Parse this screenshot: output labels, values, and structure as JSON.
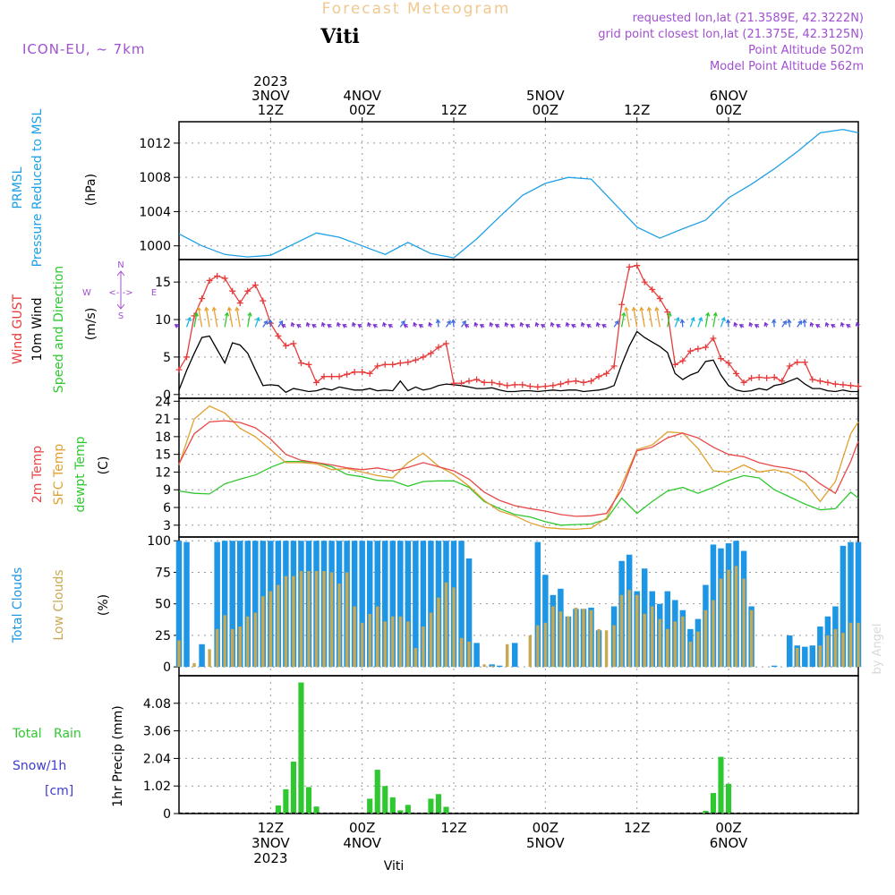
{
  "header": {
    "title": "Forecast Meteogram",
    "location": "Viti",
    "model": "ICON-EU, ~ 7km",
    "requested": "requested lon,lat (21.3589E, 42.3222N)",
    "grid_point": "grid point closest lon,lat (21.375E, 42.3125N)",
    "point_altitude": "Point Altitude 502m",
    "model_altitude": "Model Point Altitude 562m",
    "credit": "by Angel",
    "footer": "Viti"
  },
  "time_axis": {
    "top_ticks": [
      {
        "h": 12,
        "lines": [
          "2023",
          "3NOV",
          "12Z"
        ]
      },
      {
        "h": 24,
        "lines": [
          "4NOV",
          "00Z"
        ]
      },
      {
        "h": 36,
        "lines": [
          "12Z"
        ]
      },
      {
        "h": 48,
        "lines": [
          "5NOV",
          "00Z"
        ]
      },
      {
        "h": 60,
        "lines": [
          "12Z"
        ]
      },
      {
        "h": 72,
        "lines": [
          "6NOV",
          "00Z"
        ]
      }
    ],
    "bottom_ticks": [
      {
        "h": 12,
        "lines": [
          "12Z",
          "3NOV",
          "2023"
        ]
      },
      {
        "h": 24,
        "lines": [
          "00Z",
          "4NOV"
        ]
      },
      {
        "h": 36,
        "lines": [
          "12Z"
        ]
      },
      {
        "h": 48,
        "lines": [
          "00Z",
          "5NOV"
        ]
      },
      {
        "h": 60,
        "lines": [
          "12Z"
        ]
      },
      {
        "h": 72,
        "lines": [
          "00Z",
          "6NOV"
        ]
      }
    ]
  },
  "panels": {
    "pressure": {
      "label1": "PRMSL",
      "label2": "Pressure Reduced to MSL",
      "unit": "(hPa)",
      "ticks": [
        "1000",
        "1004",
        "1008",
        "1012"
      ]
    },
    "wind": {
      "label_gust": "Wind GUST",
      "label_wind": "10m Wind",
      "label_dir": "Speed and Direction",
      "unit": "(m/s)",
      "ticks": [
        "0",
        "5",
        "10",
        "15"
      ],
      "compass": {
        "n": "N",
        "s": "S",
        "w": "W",
        "e": "E",
        "ns": "^\n|\nv",
        "we": "<-|->"
      }
    },
    "temperature": {
      "label_2m": "2m Temp",
      "label_sfc": "SFC Temp",
      "label_dew": "dewpt Temp",
      "unit": "(C)",
      "ticks": [
        "3",
        "6",
        "9",
        "12",
        "15",
        "18",
        "21",
        "24"
      ]
    },
    "clouds": {
      "label_total": "Total Clouds",
      "label_low": "Low Clouds",
      "unit": "(%)",
      "ticks": [
        "0",
        "25",
        "50",
        "75",
        "100"
      ]
    },
    "precip": {
      "label_rain": "Total   Rain",
      "label_snow": "Snow/1h",
      "label_cm": "[cm]",
      "unit": "1hr Precip (mm)",
      "ticks": [
        "0",
        "1.02",
        "2.04",
        "3.06",
        "4.08"
      ]
    }
  },
  "colors": {
    "pressure": "#1ea0e6",
    "gust": "#e83c3c",
    "wind": "#000000",
    "t2m": "#e84848",
    "sfc": "#e0a030",
    "dew": "#30c830",
    "total_clouds": "#1e96e6",
    "low_clouds": "#c8a850",
    "rain": "#30c830",
    "title": "#f0c890",
    "info": "#a050d0",
    "snow": "#3c3cd0"
  },
  "chart_data": [
    {
      "type": "line",
      "name": "PRMSL",
      "x_units": "hours since 2023-11-03 00Z",
      "x": [
        0,
        3,
        6,
        9,
        12,
        15,
        18,
        21,
        24,
        27,
        30,
        33,
        36,
        39,
        42,
        45,
        48,
        51,
        54,
        57,
        60,
        63,
        66,
        69,
        72,
        75,
        78,
        81,
        84,
        87,
        89
      ],
      "series": [
        {
          "name": "PRMSL",
          "values": [
            1001.4,
            1000.0,
            999.0,
            998.7,
            998.9,
            1000.2,
            1001.5,
            1001.0,
            1000.0,
            999.0,
            1000.4,
            999.1,
            998.6,
            1000.8,
            1003.4,
            1005.9,
            1007.3,
            1008.0,
            1007.8,
            1005.0,
            1002.2,
            1000.9,
            1002.0,
            1003.0,
            1005.6,
            1007.2,
            1009.0,
            1011.0,
            1013.2,
            1013.6,
            1013.2
          ]
        }
      ],
      "ylim": [
        998.4,
        1014.5
      ],
      "ylabel": "(hPa)"
    },
    {
      "type": "line",
      "name": "Wind",
      "x": [
        0,
        1,
        2,
        3,
        4,
        5,
        6,
        7,
        8,
        9,
        10,
        11,
        12,
        13,
        14,
        15,
        16,
        17,
        18,
        19,
        20,
        21,
        22,
        23,
        24,
        25,
        26,
        27,
        28,
        29,
        30,
        31,
        32,
        33,
        34,
        35,
        36,
        37,
        38,
        39,
        40,
        41,
        42,
        43,
        44,
        45,
        46,
        47,
        48,
        49,
        50,
        51,
        52,
        53,
        54,
        55,
        56,
        57,
        58,
        59,
        60,
        61,
        62,
        63,
        64,
        65,
        66,
        67,
        68,
        69,
        70,
        71,
        72,
        73,
        74,
        75,
        76,
        77,
        78,
        79,
        80,
        81,
        82,
        83,
        84,
        85,
        86,
        87,
        88,
        89
      ],
      "series": [
        {
          "name": "Wind GUST",
          "values": [
            3.3,
            5.0,
            10.5,
            12.8,
            15.2,
            15.8,
            15.5,
            13.8,
            12.2,
            13.8,
            14.6,
            12.5,
            9.5,
            7.8,
            6.5,
            6.8,
            4.2,
            4.0,
            1.6,
            2.4,
            2.4,
            2.4,
            2.7,
            3.0,
            3.0,
            2.8,
            3.8,
            4.0,
            4.0,
            4.2,
            4.3,
            4.6,
            5.0,
            5.5,
            6.3,
            6.8,
            1.5,
            1.5,
            1.8,
            2.0,
            1.6,
            1.6,
            1.4,
            1.2,
            1.3,
            1.3,
            1.1,
            1.0,
            1.1,
            1.2,
            1.4,
            1.7,
            1.8,
            1.6,
            1.8,
            2.4,
            2.8,
            3.8,
            12.0,
            17.0,
            17.2,
            15.0,
            14.0,
            12.8,
            11.0,
            4.0,
            4.5,
            5.8,
            6.1,
            6.3,
            7.5,
            4.8,
            4.2,
            2.8,
            1.6,
            2.2,
            2.3,
            2.2,
            2.3,
            1.8,
            3.8,
            4.3,
            4.3,
            2.0,
            1.8,
            1.6,
            1.4,
            1.3,
            1.2,
            1.1
          ]
        },
        {
          "name": "10m Wind",
          "values": [
            0.6,
            3.2,
            5.5,
            7.6,
            7.8,
            6.0,
            4.2,
            6.9,
            6.6,
            5.5,
            3.3,
            1.2,
            1.3,
            1.2,
            0.3,
            0.8,
            0.6,
            0.4,
            0.5,
            0.8,
            0.6,
            1.0,
            0.8,
            0.6,
            0.6,
            0.8,
            0.5,
            0.6,
            0.5,
            1.8,
            0.5,
            1.0,
            0.6,
            0.8,
            1.2,
            1.4,
            1.3,
            1.2,
            1.0,
            0.8,
            0.8,
            0.9,
            0.6,
            0.4,
            0.4,
            0.5,
            0.5,
            0.4,
            0.5,
            0.6,
            0.5,
            0.6,
            0.6,
            0.4,
            0.5,
            0.6,
            0.8,
            1.2,
            4.0,
            6.5,
            8.4,
            7.6,
            7.0,
            6.4,
            5.6,
            2.8,
            2.0,
            2.6,
            3.0,
            4.4,
            4.6,
            2.6,
            1.2,
            0.6,
            0.4,
            0.5,
            0.8,
            0.6,
            1.2,
            1.4,
            1.8,
            2.2,
            1.4,
            0.8,
            0.8,
            0.5,
            0.4,
            0.6,
            0.4,
            0.4
          ]
        }
      ],
      "ylim": [
        -0.5,
        18
      ],
      "ylabel": "(m/s)"
    },
    {
      "type": "line",
      "name": "Temperature",
      "x": [
        0,
        2,
        4,
        6,
        8,
        10,
        12,
        14,
        16,
        18,
        20,
        22,
        24,
        26,
        28,
        30,
        32,
        34,
        36,
        38,
        40,
        42,
        44,
        46,
        48,
        50,
        52,
        54,
        56,
        58,
        60,
        62,
        64,
        66,
        68,
        70,
        72,
        74,
        76,
        78,
        80,
        82,
        84,
        86,
        88,
        89
      ],
      "series": [
        {
          "name": "2m Temp",
          "values": [
            13.4,
            18.5,
            20.5,
            20.7,
            20.4,
            19.5,
            17.6,
            15.0,
            14.0,
            13.6,
            13.2,
            12.7,
            12.4,
            12.7,
            12.2,
            12.8,
            13.6,
            12.9,
            12.2,
            10.8,
            8.6,
            7.2,
            6.3,
            5.8,
            5.4,
            4.8,
            4.5,
            4.6,
            5.0,
            9.0,
            15.6,
            16.2,
            17.8,
            18.6,
            17.8,
            16.2,
            15.0,
            14.6,
            13.6,
            13.0,
            12.6,
            12.0,
            10.0,
            8.4,
            13.8,
            17.2
          ]
        },
        {
          "name": "SFC Temp",
          "values": [
            13.2,
            21.0,
            23.2,
            22.0,
            19.4,
            18.0,
            15.8,
            13.6,
            13.6,
            13.4,
            12.4,
            12.6,
            12.0,
            11.4,
            11.0,
            13.6,
            15.2,
            13.0,
            11.6,
            9.6,
            7.2,
            5.4,
            4.6,
            3.4,
            2.6,
            2.4,
            2.3,
            2.5,
            4.2,
            9.8,
            15.8,
            16.6,
            18.8,
            18.6,
            16.0,
            12.2,
            12.0,
            13.2,
            12.0,
            12.4,
            11.8,
            10.2,
            7.0,
            10.4,
            18.5,
            20.5
          ]
        },
        {
          "name": "dewpt Temp",
          "values": [
            8.8,
            8.4,
            8.3,
            10.0,
            10.8,
            11.5,
            12.8,
            13.8,
            13.8,
            13.6,
            12.9,
            11.6,
            11.2,
            10.6,
            10.5,
            9.6,
            10.4,
            10.5,
            10.5,
            9.4,
            7.0,
            5.8,
            4.8,
            4.4,
            3.6,
            3.0,
            3.1,
            3.2,
            4.0,
            7.6,
            5.0,
            7.0,
            8.8,
            9.4,
            8.4,
            9.4,
            10.6,
            11.4,
            11.0,
            9.0,
            7.8,
            6.6,
            5.6,
            5.8,
            8.6,
            7.6
          ]
        }
      ],
      "ylim": [
        1,
        24.5
      ],
      "ylabel": "(C)"
    },
    {
      "type": "bar",
      "name": "Clouds",
      "x": [
        0,
        1,
        2,
        3,
        4,
        5,
        6,
        7,
        8,
        9,
        10,
        11,
        12,
        13,
        14,
        15,
        16,
        17,
        18,
        19,
        20,
        21,
        22,
        23,
        24,
        25,
        26,
        27,
        28,
        29,
        30,
        31,
        32,
        33,
        34,
        35,
        36,
        37,
        38,
        39,
        40,
        41,
        42,
        43,
        44,
        45,
        46,
        47,
        48,
        49,
        50,
        51,
        52,
        53,
        54,
        55,
        56,
        57,
        58,
        59,
        60,
        61,
        62,
        63,
        64,
        65,
        66,
        67,
        68,
        69,
        70,
        71,
        72,
        73,
        74,
        75,
        76,
        77,
        78,
        79,
        80,
        81,
        82,
        83,
        84,
        85,
        86,
        87,
        88,
        89
      ],
      "series": [
        {
          "name": "Total Clouds",
          "values": [
            100,
            99,
            0,
            18,
            0,
            99,
            100,
            100,
            100,
            100,
            100,
            100,
            100,
            100,
            100,
            100,
            100,
            100,
            100,
            100,
            100,
            100,
            100,
            100,
            100,
            100,
            100,
            100,
            100,
            100,
            100,
            100,
            100,
            100,
            100,
            100,
            100,
            100,
            86,
            19,
            0,
            2,
            1,
            0,
            19,
            0,
            0,
            99,
            73,
            57,
            62,
            40,
            46,
            46,
            47,
            29,
            0,
            48,
            84,
            89,
            60,
            78,
            60,
            50,
            60,
            53,
            45,
            30,
            38,
            65,
            97,
            94,
            98,
            100,
            92,
            48,
            0,
            0,
            1,
            0,
            25,
            17,
            16,
            17,
            32,
            40,
            48,
            96,
            99,
            99
          ]
        },
        {
          "name": "Low Clouds",
          "values": [
            21,
            0,
            3,
            0,
            14,
            30,
            41,
            30,
            32,
            40,
            43,
            56,
            60,
            65,
            72,
            72,
            76,
            76,
            76,
            76,
            75,
            66,
            75,
            48,
            35,
            42,
            48,
            36,
            40,
            40,
            36,
            15,
            32,
            43,
            55,
            67,
            63,
            23,
            20,
            0,
            2,
            1,
            0,
            18,
            0,
            0,
            25,
            33,
            35,
            48,
            44,
            40,
            47,
            46,
            45,
            30,
            29,
            33,
            57,
            61,
            57,
            42,
            48,
            38,
            30,
            36,
            40,
            20,
            28,
            45,
            53,
            70,
            77,
            80,
            70,
            45,
            0,
            0,
            0,
            0,
            0,
            15,
            0,
            0,
            17,
            25,
            30,
            27,
            35,
            35
          ]
        }
      ],
      "ylim": [
        -7,
        103
      ],
      "ylabel": "(%)"
    },
    {
      "type": "bar",
      "name": "Precipitation",
      "x": [
        13,
        14,
        15,
        16,
        17,
        18,
        19,
        25,
        26,
        27,
        28,
        29,
        30,
        31,
        33,
        34,
        35,
        69,
        70,
        71
      ],
      "series": [
        {
          "name": "1hr Precip",
          "values": [
            0.3,
            0.9,
            1.92,
            4.85,
            0.98,
            0.26,
            0.0,
            0.55,
            1.62,
            1.02,
            0.6,
            0.12,
            0.32,
            0.0,
            0.55,
            0.72,
            0.25,
            0.1,
            0.76,
            2.1
          ]
        }
      ],
      "extra": {
        "x": [
          72
        ],
        "values": [
          1.1
        ]
      },
      "ylim": [
        0,
        5.1
      ],
      "ylabel": "1hr Precip (mm)"
    }
  ]
}
